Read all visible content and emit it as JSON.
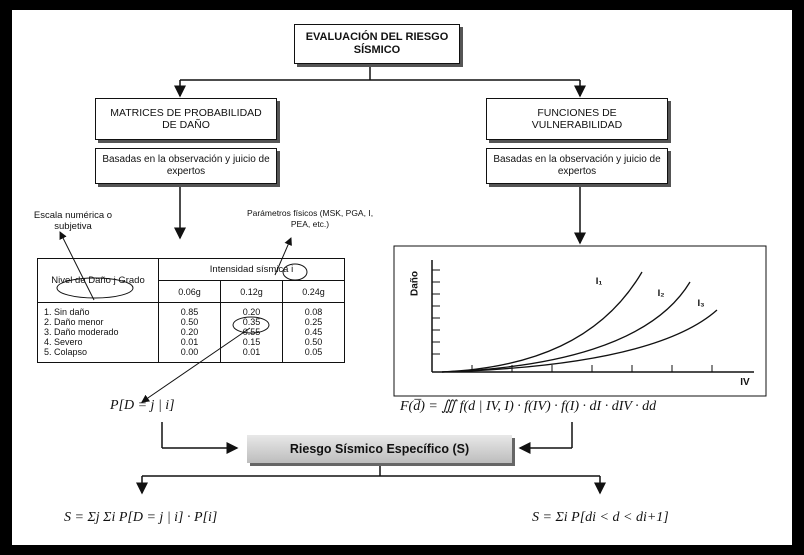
{
  "title_box": "EVALUACIÓN DEL RIESGO SÍSMICO",
  "left_branch": {
    "header": "MATRICES DE PROBABILIDAD DE DAÑO",
    "basis": "Basadas en la observación y juicio de expertos",
    "scale_note": "Escala numérica o subjetiva",
    "params_note": "Parámetros físicos (MSK, PGA, I, PEA, etc.)",
    "table": {
      "col0_header": "Nivel de Daño j Grado",
      "intensity_header": "Intensidad sísmica i",
      "columns": [
        "0.06g",
        "0.12g",
        "0.24g"
      ],
      "row_labels": "1. Sin daño\n2. Daño menor\n3. Daño moderado\n4. Severo\n5. Colapso",
      "col1": "0.85\n0.50\n0.20\n0.01\n0.00",
      "col2": "0.20\n0.35\n0.55\n0.15\n0.01",
      "col3": "0.08\n0.25\n0.45\n0.50\n0.05"
    },
    "formula": "P[D = j | i]"
  },
  "right_branch": {
    "header": "FUNCIONES DE VULNERABILIDAD",
    "basis": "Basadas en la observación y juicio de expertos",
    "y_axis": "Daño",
    "x_axis": "IV",
    "curves": [
      "I₁",
      "I₂",
      "I₃"
    ],
    "formula": "F(d̅) = ∭ f(d | IV, I) · f(IV) · f(I) · dI · dIV · dd"
  },
  "result": "Riesgo Sísmico Específico (S)",
  "formula_left": "S = Σj Σi P[D = j | i] · P[i]",
  "formula_right": "S = Σi P[di < d < di+1]"
}
